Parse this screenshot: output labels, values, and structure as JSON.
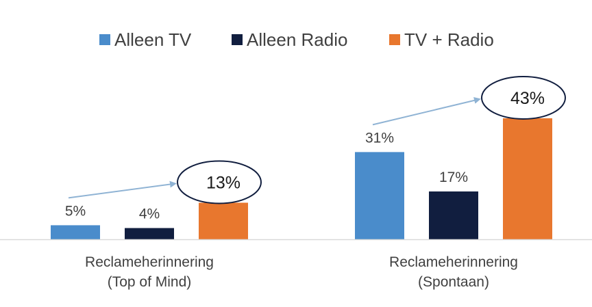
{
  "chart_data": {
    "type": "bar",
    "categories": [
      "Reclameherinnering\n(Top of Mind)",
      "Reclameherinnering\n(Spontaan)"
    ],
    "series": [
      {
        "name": "Alleen TV",
        "values": [
          5,
          31
        ],
        "labels": [
          "5%",
          "31%"
        ]
      },
      {
        "name": "Alleen Radio",
        "values": [
          4,
          17
        ],
        "labels": [
          "4%",
          "17%"
        ]
      },
      {
        "name": "TV + Radio",
        "values": [
          13,
          43
        ],
        "labels": [
          "13%",
          "43%"
        ]
      }
    ],
    "ylim": [
      0,
      43
    ],
    "grid": false,
    "legend_position": "top-center",
    "highlight_series": "TV + Radio"
  },
  "colors": {
    "Alleen TV": "#4a8ccb",
    "Alleen Radio": "#111e3f",
    "TV + Radio": "#e8772e",
    "arrow": "#8fb3d4",
    "axis": "#d9d9d9",
    "ellipse": "#111e3f"
  }
}
